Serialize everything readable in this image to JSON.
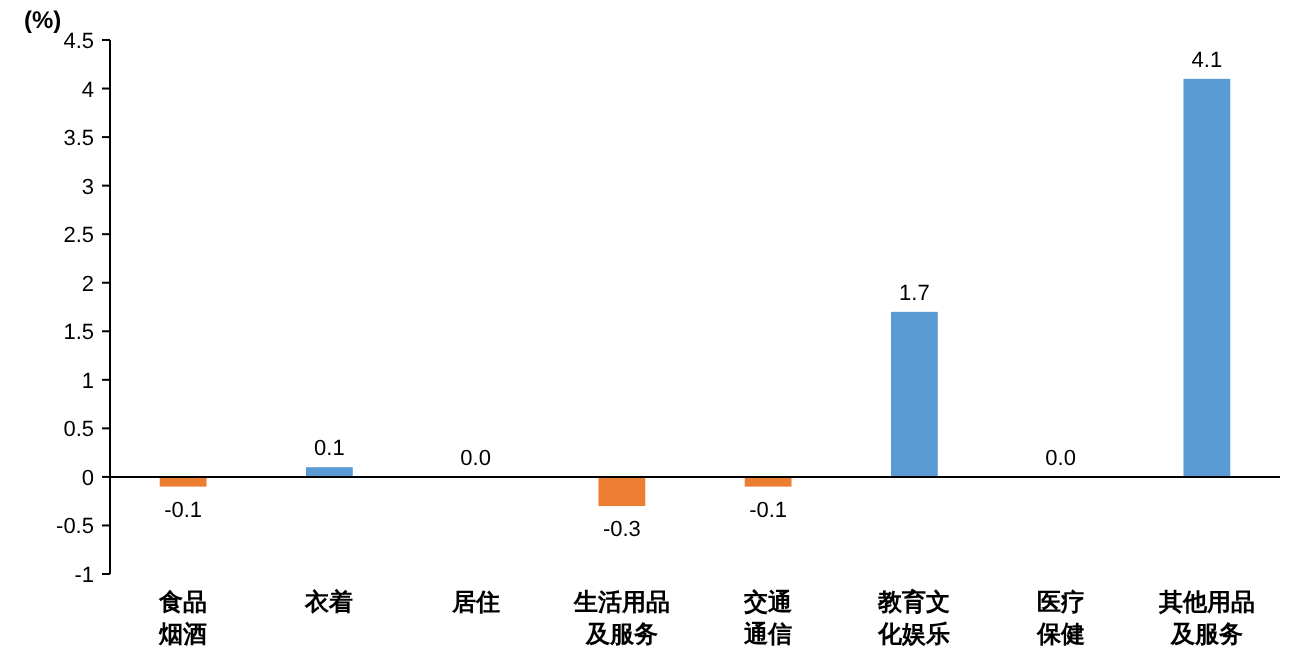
{
  "chart_data": {
    "type": "bar",
    "ylabel": "(%)",
    "categories": [
      "食品烟酒",
      "衣着",
      "居住",
      "生活用品及服务",
      "交通通信",
      "教育文化娱乐",
      "医疗保健",
      "其他用品及服务"
    ],
    "values": [
      -0.1,
      0.1,
      0.0,
      -0.3,
      -0.1,
      1.7,
      0.0,
      4.1
    ],
    "colors": [
      "#ed7d31",
      "#5b9bd5",
      "#5b9bd5",
      "#ed7d31",
      "#ed7d31",
      "#5b9bd5",
      "#5b9bd5",
      "#5b9bd5"
    ],
    "value_labels": [
      "-0.1",
      "0.1",
      "0.0",
      "-0.3",
      "-0.1",
      "1.7",
      "0.0",
      "4.1"
    ],
    "ylim": [
      -1,
      4.5
    ],
    "yticks": [
      -1,
      -0.5,
      0,
      0.5,
      1,
      1.5,
      2,
      2.5,
      3,
      3.5,
      4,
      4.5
    ]
  }
}
